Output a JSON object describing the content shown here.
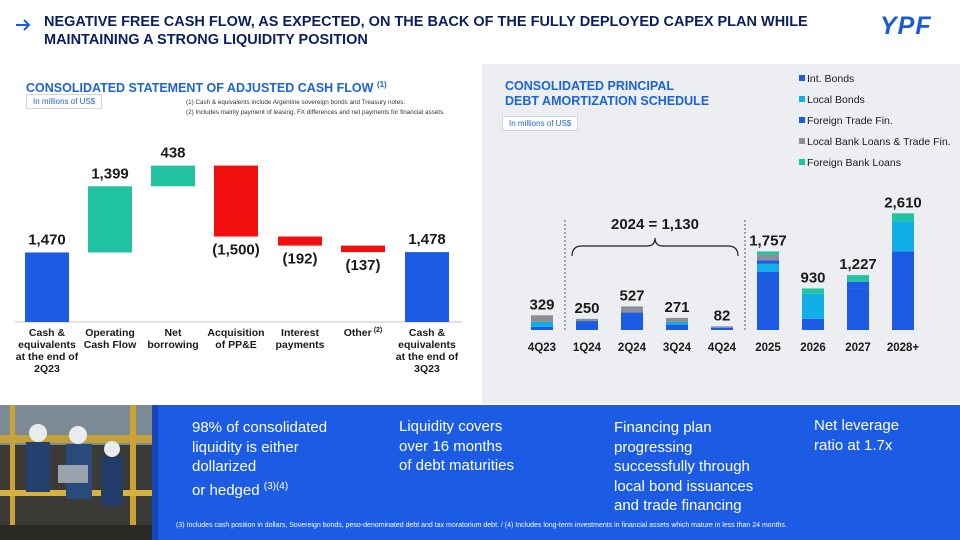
{
  "header": {
    "title": "NEGATIVE FREE CASH FLOW, AS EXPECTED, ON THE BACK OF THE FULLY DEPLOYED CAPEX PLAN WHILE MAINTAINING A STRONG LIQUIDITY POSITION",
    "logo": "YPF"
  },
  "left": {
    "title": "CONSOLIDATED STATEMENT OF ADJUSTED CASH FLOW",
    "title_sup": "(1)",
    "unit": "In millions of US$",
    "note1": "(1) Cash & equivalents include Argentine sovereign bonds and Treasury notes.",
    "note2": "(2) Includes mainly payment of leasing, FX differences and net payments for financial assets."
  },
  "right": {
    "title_line1": "CONSOLIDATED PRINCIPAL",
    "title_line2": "DEBT AMORTIZATION SCHEDULE",
    "unit": "In millions of US$",
    "bracket_label": "2024 = 1,130"
  },
  "bottom": {
    "kpi1_line1": "98% of consolidated",
    "kpi1_line2": "liquidity is either",
    "kpi1_line3": "dollarized",
    "kpi1_line4": "or hedged",
    "kpi1_sup": "(3)(4)",
    "kpi2_line1": "Liquidity covers",
    "kpi2_line2": "over 16 months",
    "kpi2_line3": "of debt maturities",
    "kpi3_line1": "Financing plan",
    "kpi3_line2": "progressing",
    "kpi3_line3": "successfully through",
    "kpi3_line4": "local bond issuances",
    "kpi3_line5": "and trade financing",
    "kpi4_line1": "Net leverage",
    "kpi4_line2": "ratio at 1.7x",
    "footnote": "(3) Includes cash position in dollars, Sovereign bonds, peso-denominated debt and tax moratorium debt.   /  (4) Includes long-term investments in financial assets which mature in less than 24 months."
  },
  "chart_data": [
    {
      "type": "waterfall",
      "title": "CONSOLIDATED STATEMENT OF ADJUSTED CASH FLOW",
      "unit": "In millions of US$",
      "items": [
        {
          "label": [
            "Cash &",
            "equivalents",
            "at the end of",
            "2Q23"
          ],
          "value": 1470,
          "display": "1,470",
          "kind": "total"
        },
        {
          "label": [
            "Operating",
            "Cash Flow"
          ],
          "value": 1399,
          "display": "1,399",
          "kind": "increase"
        },
        {
          "label": [
            "Net",
            "borrowing"
          ],
          "value": 438,
          "display": "438",
          "kind": "increase"
        },
        {
          "label": [
            "Acquisition",
            "of PP&E"
          ],
          "value": -1500,
          "display": "(1,500)",
          "kind": "decrease"
        },
        {
          "label": [
            "Interest",
            "payments"
          ],
          "value": -192,
          "display": "(192)",
          "kind": "decrease"
        },
        {
          "label": [
            "Other"
          ],
          "label_sup": "(2)",
          "value": -137,
          "display": "(137)",
          "kind": "decrease"
        },
        {
          "label": [
            "Cash &",
            "equivalents",
            "at the end of",
            "3Q23"
          ],
          "value": 1478,
          "display": "1,478",
          "kind": "total"
        }
      ],
      "colors": {
        "total": "#1c5be3",
        "increase": "#22c3a3",
        "decrease": "#f20f0f"
      }
    },
    {
      "type": "bar",
      "stacked": true,
      "title": "CONSOLIDATED PRINCIPAL DEBT AMORTIZATION SCHEDULE",
      "unit": "In millions of US$",
      "categories": [
        "4Q23",
        "1Q24",
        "2Q24",
        "3Q24",
        "4Q24",
        "2025",
        "2026",
        "2027",
        "2028+"
      ],
      "totals": [
        329,
        250,
        527,
        271,
        82,
        1757,
        930,
        1227,
        2610
      ],
      "total_labels": [
        "329",
        "250",
        "527",
        "271",
        "82",
        "1,757",
        "930",
        "1,227",
        "2,610"
      ],
      "series": [
        {
          "name": "Int. Bonds",
          "color": "#1c5be3",
          "values": [
            70,
            200,
            390,
            120,
            50,
            1300,
            250,
            930,
            1760
          ]
        },
        {
          "name": "Local Bonds",
          "color": "#11aee8",
          "values": [
            110,
            0,
            0,
            60,
            0,
            180,
            560,
            0,
            670
          ]
        },
        {
          "name": "Foreign Trade Fin.",
          "color": "#1c5be3",
          "values": [
            0,
            0,
            0,
            0,
            0,
            80,
            0,
            150,
            0
          ]
        },
        {
          "name": "Local Bank Loans & Trade Fin.",
          "color": "#8c8f96",
          "values": [
            149,
            50,
            137,
            91,
            32,
            127,
            0,
            0,
            0
          ]
        },
        {
          "name": "Foreign Bank Loans",
          "color": "#22c3a3",
          "values": [
            0,
            0,
            0,
            0,
            0,
            70,
            120,
            147,
            180
          ]
        }
      ]
    }
  ]
}
